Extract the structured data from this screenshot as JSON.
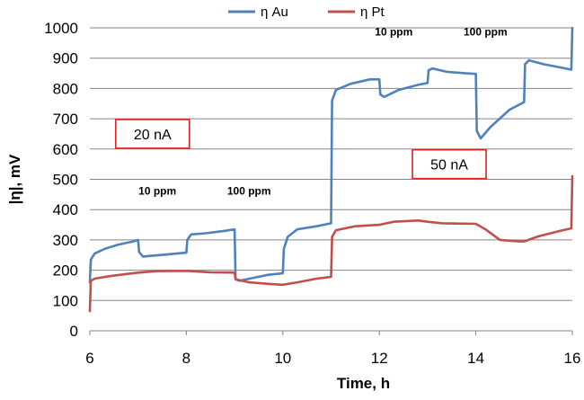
{
  "chart_data": {
    "type": "line",
    "title": "",
    "xlabel": "Time, h",
    "ylabel": "|η|, mV",
    "xlim": [
      6,
      16
    ],
    "ylim": [
      0,
      1000
    ],
    "x_ticks": [
      "6",
      "8",
      "10",
      "12",
      "14",
      "16"
    ],
    "y_ticks": [
      "0",
      "100",
      "200",
      "300",
      "400",
      "500",
      "600",
      "700",
      "800",
      "900",
      "1000"
    ],
    "grid": true,
    "legend_position": "top",
    "series": [
      {
        "name": "η Au",
        "color": "#4f81bd",
        "points": [
          [
            6.0,
            160
          ],
          [
            6.02,
            235
          ],
          [
            6.1,
            255
          ],
          [
            6.3,
            270
          ],
          [
            6.6,
            285
          ],
          [
            6.9,
            295
          ],
          [
            7.0,
            300
          ],
          [
            7.02,
            260
          ],
          [
            7.1,
            245
          ],
          [
            7.3,
            248
          ],
          [
            7.6,
            252
          ],
          [
            8.0,
            258
          ],
          [
            8.02,
            300
          ],
          [
            8.1,
            318
          ],
          [
            8.4,
            322
          ],
          [
            8.8,
            330
          ],
          [
            9.0,
            335
          ],
          [
            9.02,
            170
          ],
          [
            9.1,
            165
          ],
          [
            9.4,
            175
          ],
          [
            9.7,
            185
          ],
          [
            10.0,
            190
          ],
          [
            10.02,
            270
          ],
          [
            10.1,
            310
          ],
          [
            10.3,
            335
          ],
          [
            10.7,
            345
          ],
          [
            11.0,
            355
          ],
          [
            11.02,
            760
          ],
          [
            11.1,
            795
          ],
          [
            11.4,
            815
          ],
          [
            11.8,
            830
          ],
          [
            12.0,
            830
          ],
          [
            12.02,
            780
          ],
          [
            12.1,
            772
          ],
          [
            12.4,
            795
          ],
          [
            12.8,
            812
          ],
          [
            13.0,
            818
          ],
          [
            13.02,
            860
          ],
          [
            13.1,
            866
          ],
          [
            13.4,
            855
          ],
          [
            13.8,
            850
          ],
          [
            14.0,
            848
          ],
          [
            14.02,
            660
          ],
          [
            14.1,
            635
          ],
          [
            14.3,
            672
          ],
          [
            14.7,
            730
          ],
          [
            15.0,
            755
          ],
          [
            15.02,
            880
          ],
          [
            15.1,
            893
          ],
          [
            15.4,
            880
          ],
          [
            15.8,
            868
          ],
          [
            15.98,
            862
          ],
          [
            16.0,
            1000
          ]
        ]
      },
      {
        "name": "η Pt",
        "color": "#c0504d",
        "points": [
          [
            6.0,
            65
          ],
          [
            6.02,
            165
          ],
          [
            6.1,
            172
          ],
          [
            6.4,
            180
          ],
          [
            6.8,
            188
          ],
          [
            7.0,
            192
          ],
          [
            7.4,
            197
          ],
          [
            8.0,
            198
          ],
          [
            8.5,
            193
          ],
          [
            9.0,
            192
          ],
          [
            9.02,
            170
          ],
          [
            9.3,
            160
          ],
          [
            9.7,
            155
          ],
          [
            10.0,
            152
          ],
          [
            10.3,
            160
          ],
          [
            10.7,
            172
          ],
          [
            11.0,
            178
          ],
          [
            11.02,
            310
          ],
          [
            11.1,
            332
          ],
          [
            11.5,
            345
          ],
          [
            12.0,
            350
          ],
          [
            12.3,
            360
          ],
          [
            12.8,
            364
          ],
          [
            13.0,
            360
          ],
          [
            13.3,
            355
          ],
          [
            14.0,
            353
          ],
          [
            14.2,
            335
          ],
          [
            14.5,
            300
          ],
          [
            14.9,
            295
          ],
          [
            15.0,
            295
          ],
          [
            15.3,
            312
          ],
          [
            15.8,
            332
          ],
          [
            15.98,
            338
          ],
          [
            16.0,
            510
          ]
        ]
      }
    ],
    "annotations": [
      {
        "text": "10 ppm",
        "x": 7.4,
        "y": 450
      },
      {
        "text": "100 ppm",
        "x": 9.3,
        "y": 450
      },
      {
        "text": "10 ppm",
        "x": 12.3,
        "y": 975
      },
      {
        "text": "100 ppm",
        "x": 14.2,
        "y": 975
      }
    ],
    "boxed_labels": [
      {
        "text": "20 nA",
        "x": 7.3,
        "y": 650
      },
      {
        "text": "50 nA",
        "x": 13.45,
        "y": 550
      }
    ]
  }
}
